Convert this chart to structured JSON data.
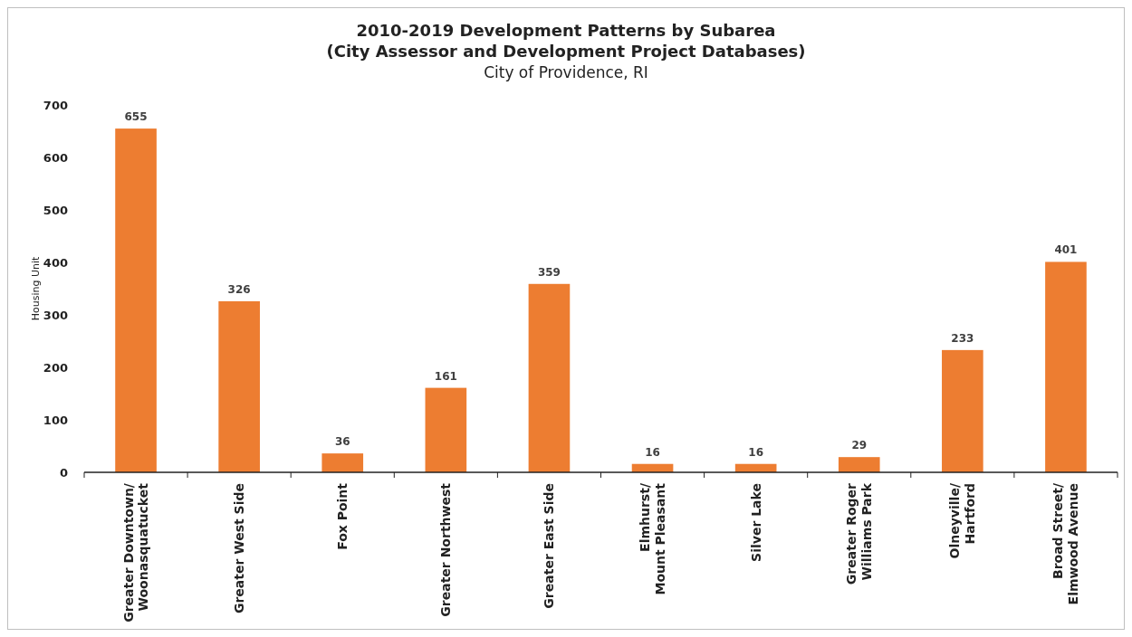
{
  "chart_data": {
    "type": "bar",
    "title": "2010-2019 Development Patterns by Subarea\n(City Assessor and Development Project Databases)",
    "subtitle": "City of Providence, RI",
    "ylabel": "Housing Unit",
    "categories": [
      "Greater Downtown/\nWoonasquatucket",
      "Greater West Side",
      "Fox Point",
      "Greater Northwest",
      "Greater East Side",
      "Elmhurst/\nMount Pleasant",
      "Silver Lake",
      "Greater Roger\nWilliams Park",
      "Olneyville/\nHartford",
      "Broad Street/\nElmwood Avenue"
    ],
    "values": [
      655,
      326,
      36,
      161,
      359,
      16,
      16,
      29,
      233,
      401
    ],
    "color": "#ed7d31",
    "ylim": [
      0,
      700
    ],
    "yticks": [
      0,
      100,
      200,
      300,
      400,
      500,
      600,
      700
    ],
    "grid": false,
    "data_labels": true
  }
}
